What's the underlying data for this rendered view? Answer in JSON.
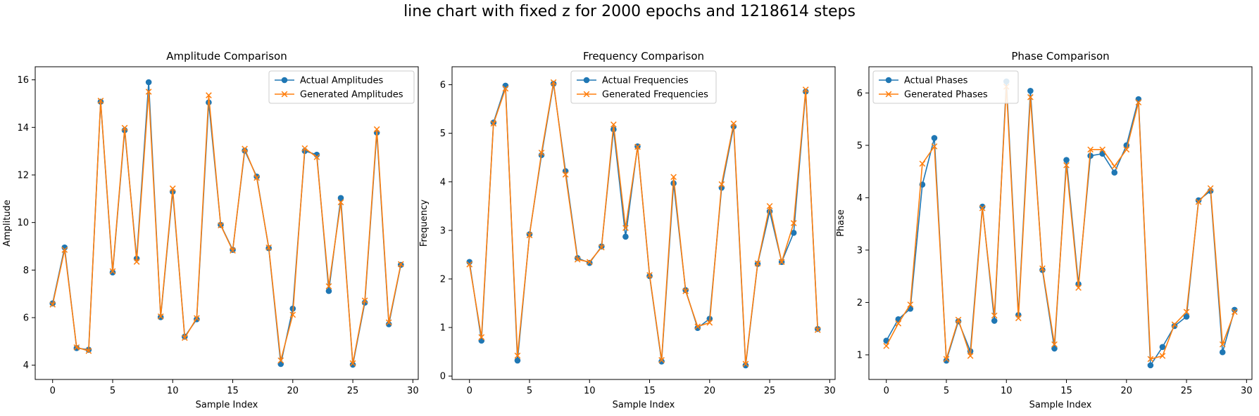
{
  "suptitle": "line chart with fixed z for 2000 epochs and 1218614 steps",
  "colors": {
    "actual": "#1f77b4",
    "generated": "#ff7f0e"
  },
  "chart_data": [
    {
      "type": "line",
      "title": "Amplitude Comparison",
      "xlabel": "Sample Index",
      "ylabel": "Amplitude",
      "xlim": [
        -1.45,
        30.45
      ],
      "ylim": [
        3.4,
        16.55
      ],
      "xticks": [
        0,
        5,
        10,
        15,
        20,
        25,
        30
      ],
      "yticks": [
        4,
        6,
        8,
        10,
        12,
        14,
        16
      ],
      "legend_position": "upper-right",
      "x": [
        0,
        1,
        2,
        3,
        4,
        5,
        6,
        7,
        8,
        9,
        10,
        11,
        12,
        13,
        14,
        15,
        16,
        17,
        18,
        19,
        20,
        21,
        22,
        23,
        24,
        25,
        26,
        27,
        28,
        29
      ],
      "series": [
        {
          "name": "Actual Amplitudes",
          "marker": "o",
          "values": [
            6.6,
            8.95,
            4.72,
            4.65,
            15.08,
            7.9,
            13.88,
            8.48,
            15.9,
            6.02,
            11.3,
            5.2,
            5.93,
            15.05,
            9.9,
            8.85,
            13.02,
            11.93,
            8.92,
            4.05,
            6.38,
            13.01,
            12.85,
            7.12,
            11.03,
            4.02,
            6.63,
            13.78,
            5.72,
            8.22
          ]
        },
        {
          "name": "Generated Amplitudes",
          "marker": "x",
          "values": [
            6.55,
            8.85,
            4.75,
            4.6,
            15.12,
            7.95,
            13.98,
            8.35,
            15.5,
            6.05,
            11.43,
            5.15,
            5.98,
            15.35,
            9.88,
            8.82,
            13.1,
            11.88,
            8.95,
            4.2,
            6.12,
            13.12,
            12.75,
            7.32,
            10.85,
            4.08,
            6.72,
            13.92,
            5.8,
            8.25
          ]
        }
      ]
    },
    {
      "type": "line",
      "title": "Frequency Comparison",
      "xlabel": "Sample Index",
      "ylabel": "Frequency",
      "xlim": [
        -1.45,
        30.45
      ],
      "ylim": [
        -0.07,
        6.37
      ],
      "xticks": [
        0,
        5,
        10,
        15,
        20,
        25,
        30
      ],
      "yticks": [
        0,
        1,
        2,
        3,
        4,
        5,
        6
      ],
      "legend_position": "upper-center",
      "x": [
        0,
        1,
        2,
        3,
        4,
        5,
        6,
        7,
        8,
        9,
        10,
        11,
        12,
        13,
        14,
        15,
        16,
        17,
        18,
        19,
        20,
        21,
        22,
        23,
        24,
        25,
        26,
        27,
        28,
        29
      ],
      "series": [
        {
          "name": "Actual Frequencies",
          "marker": "o",
          "values": [
            2.35,
            0.73,
            5.22,
            5.98,
            0.32,
            2.92,
            4.55,
            6.02,
            4.22,
            2.43,
            2.33,
            2.67,
            5.08,
            2.87,
            4.73,
            2.06,
            0.3,
            3.97,
            1.77,
            0.99,
            1.18,
            3.88,
            5.14,
            0.22,
            2.31,
            3.39,
            2.35,
            2.95,
            5.86,
            0.97
          ]
        },
        {
          "name": "Generated Frequencies",
          "marker": "x",
          "values": [
            2.3,
            0.8,
            5.2,
            5.92,
            0.42,
            2.9,
            4.6,
            6.05,
            4.15,
            2.4,
            2.35,
            2.65,
            5.18,
            3.05,
            4.72,
            2.08,
            0.33,
            4.1,
            1.75,
            1.02,
            1.1,
            3.95,
            5.2,
            0.25,
            2.32,
            3.5,
            2.35,
            3.15,
            5.9,
            0.95
          ]
        }
      ]
    },
    {
      "type": "line",
      "title": "Phase Comparison",
      "xlabel": "Sample Index",
      "ylabel": "Phase",
      "xlim": [
        -1.45,
        30.45
      ],
      "ylim": [
        0.53,
        6.5
      ],
      "xticks": [
        0,
        5,
        10,
        15,
        20,
        25,
        30
      ],
      "yticks": [
        1,
        2,
        3,
        4,
        5,
        6
      ],
      "legend_position": "upper-left",
      "x": [
        0,
        1,
        2,
        3,
        4,
        5,
        6,
        7,
        8,
        9,
        10,
        11,
        12,
        13,
        14,
        15,
        16,
        17,
        18,
        19,
        20,
        21,
        22,
        23,
        24,
        25,
        26,
        27,
        28,
        29
      ],
      "series": [
        {
          "name": "Actual Phases",
          "marker": "o",
          "values": [
            1.27,
            1.68,
            1.88,
            4.25,
            5.14,
            0.89,
            1.64,
            1.07,
            3.83,
            1.65,
            6.22,
            1.76,
            6.04,
            2.62,
            1.12,
            4.72,
            2.35,
            4.8,
            4.84,
            4.48,
            5.0,
            5.88,
            0.8,
            1.15,
            1.55,
            1.73,
            3.95,
            4.13,
            1.05,
            1.86
          ]
        },
        {
          "name": "Generated Phases",
          "marker": "x",
          "values": [
            1.17,
            1.6,
            1.96,
            4.65,
            4.98,
            0.92,
            1.67,
            0.98,
            3.8,
            1.75,
            6.12,
            1.7,
            5.92,
            2.65,
            1.2,
            4.62,
            2.28,
            4.92,
            4.92,
            4.6,
            4.92,
            5.82,
            0.92,
            0.98,
            1.58,
            1.82,
            3.92,
            4.18,
            1.2,
            1.82
          ]
        }
      ]
    }
  ]
}
